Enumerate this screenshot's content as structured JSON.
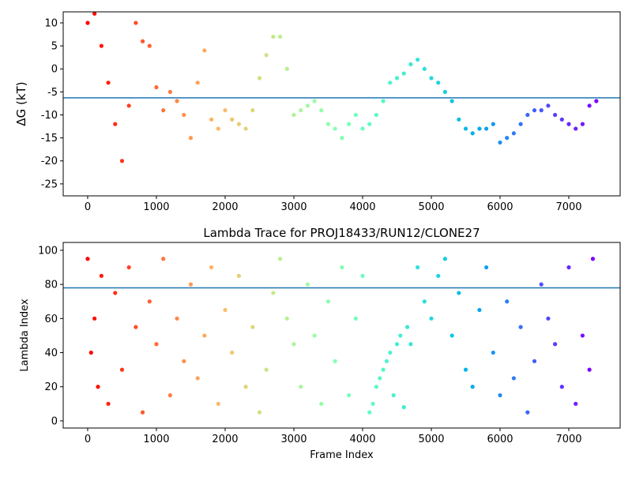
{
  "chart_data": [
    {
      "type": "scatter",
      "ylabel": "ΔG (kT)",
      "colormap": "rainbow_r",
      "hline": -6.3,
      "hline_color": "#1f77b4",
      "xlim": [
        -356,
        7747
      ],
      "ylim": [
        -27.6,
        12.4
      ],
      "xticks": [
        0,
        1000,
        2000,
        3000,
        4000,
        5000,
        6000,
        7000
      ],
      "yticks": [
        -25,
        -20,
        -15,
        -10,
        -5,
        0,
        5,
        10
      ],
      "x": [
        0,
        100,
        200,
        300,
        400,
        500,
        600,
        700,
        800,
        900,
        1000,
        1100,
        1200,
        1300,
        1400,
        1500,
        1600,
        1700,
        1800,
        1900,
        2000,
        2100,
        2200,
        2300,
        2400,
        2500,
        2600,
        2700,
        2800,
        2900,
        3000,
        3100,
        3200,
        3300,
        3400,
        3500,
        3600,
        3700,
        3800,
        3900,
        4000,
        4100,
        4200,
        4300,
        4400,
        4500,
        4600,
        4700,
        4800,
        4900,
        5000,
        5100,
        5200,
        5300,
        5400,
        5500,
        5600,
        5700,
        5800,
        5900,
        6000,
        6100,
        6200,
        6300,
        6400,
        6500,
        6600,
        6700,
        6800,
        6900,
        7000,
        7100,
        7200,
        7300,
        7400
      ],
      "values": [
        10,
        12,
        5,
        -3,
        -12,
        -20,
        -8,
        10,
        6,
        5,
        -4,
        -9,
        -5,
        -7,
        -10,
        -15,
        -3,
        4,
        -11,
        -13,
        -9,
        -11,
        -12,
        -13,
        -9,
        -2,
        3,
        7,
        7,
        0,
        -10,
        -9,
        -8,
        -7,
        -9,
        -12,
        -13,
        -15,
        -12,
        -10,
        -13,
        -12,
        -10,
        -7,
        -3,
        -2,
        -1,
        1,
        2,
        0,
        -2,
        -3,
        -5,
        -7,
        -11,
        -13,
        -14,
        -13,
        -13,
        -12,
        -16,
        -15,
        -14,
        -12,
        -10,
        -9,
        -9,
        -8,
        -10,
        -11,
        -12,
        -13,
        -12,
        -8,
        -7
      ]
    },
    {
      "type": "scatter",
      "title": "Lambda Trace for PROJ18433/RUN12/CLONE27",
      "xlabel": "Frame Index",
      "ylabel": "Lambda Index",
      "colormap": "rainbow_r",
      "hline": 78,
      "hline_color": "#1f77b4",
      "xlim": [
        -356,
        7747
      ],
      "ylim": [
        -4.2,
        104.6
      ],
      "xticks": [
        0,
        1000,
        2000,
        3000,
        4000,
        5000,
        6000,
        7000
      ],
      "yticks": [
        0,
        20,
        40,
        60,
        80,
        100
      ],
      "x": [
        0,
        50,
        100,
        150,
        200,
        300,
        400,
        500,
        600,
        700,
        800,
        900,
        1000,
        1100,
        1200,
        1300,
        1400,
        1500,
        1600,
        1700,
        1800,
        1900,
        2000,
        2100,
        2200,
        2300,
        2400,
        2500,
        2600,
        2700,
        2800,
        2900,
        3000,
        3100,
        3200,
        3300,
        3400,
        3500,
        3600,
        3700,
        3800,
        3900,
        4000,
        4100,
        4150,
        4200,
        4250,
        4300,
        4350,
        4400,
        4450,
        4500,
        4550,
        4600,
        4650,
        4700,
        4800,
        4900,
        5000,
        5100,
        5200,
        5300,
        5400,
        5500,
        5600,
        5700,
        5800,
        5900,
        6000,
        6100,
        6200,
        6300,
        6400,
        6500,
        6600,
        6700,
        6800,
        6900,
        7000,
        7100,
        7200,
        7300,
        7350
      ],
      "values": [
        95,
        40,
        60,
        20,
        85,
        10,
        75,
        30,
        90,
        55,
        5,
        70,
        45,
        95,
        15,
        60,
        35,
        80,
        25,
        50,
        90,
        10,
        65,
        40,
        85,
        20,
        55,
        5,
        30,
        75,
        95,
        60,
        45,
        20,
        80,
        50,
        10,
        70,
        35,
        90,
        15,
        60,
        85,
        5,
        10,
        20,
        25,
        30,
        35,
        40,
        15,
        45,
        50,
        8,
        55,
        45,
        90,
        70,
        60,
        85,
        95,
        50,
        75,
        30,
        20,
        65,
        90,
        40,
        15,
        70,
        25,
        55,
        5,
        35,
        80,
        60,
        45,
        20,
        90,
        10,
        50,
        30,
        95
      ]
    }
  ]
}
